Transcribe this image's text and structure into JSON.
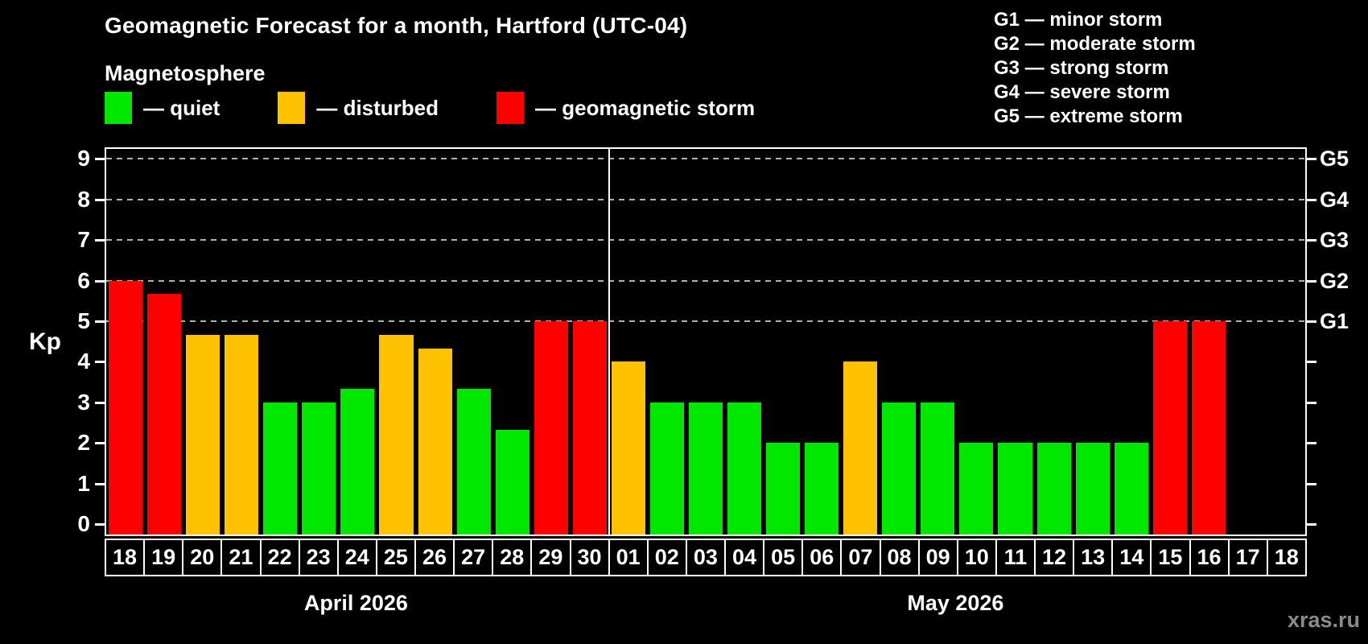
{
  "title": "Geomagnetic Forecast for a month, Hartford (UTC-04)",
  "subtitle": "Magnetosphere",
  "watermark": "xras.ru",
  "colors": {
    "quiet": "#00e800",
    "disturbed": "#ffc200",
    "storm": "#ff0000",
    "background": "#000000",
    "axis": "#ffffff",
    "grid": "#b0b0b0",
    "watermark": "#8a8a8a"
  },
  "legend": {
    "items": [
      {
        "key": "quiet",
        "label": "— quiet",
        "color": "#00e800"
      },
      {
        "key": "disturbed",
        "label": "— disturbed",
        "color": "#ffc200"
      },
      {
        "key": "storm",
        "label": "— geomagnetic storm",
        "color": "#ff0000"
      }
    ]
  },
  "g_legend": [
    "G1 — minor storm",
    "G2 — moderate storm",
    "G3 — strong storm",
    "G4 — severe storm",
    "G5 — extreme storm"
  ],
  "axis": {
    "y_label": "Kp",
    "y_ticks": [
      0,
      1,
      2,
      3,
      4,
      5,
      6,
      7,
      8,
      9
    ],
    "right_labels": [
      {
        "kp": 5,
        "label": "G1"
      },
      {
        "kp": 6,
        "label": "G2"
      },
      {
        "kp": 7,
        "label": "G3"
      },
      {
        "kp": 8,
        "label": "G4"
      },
      {
        "kp": 9,
        "label": "G5"
      }
    ]
  },
  "chart_data": {
    "type": "bar",
    "title": "Geomagnetic Forecast for a month, Hartford (UTC-04)",
    "xlabel": "",
    "ylabel": "Kp",
    "ylim": [
      0,
      9.3
    ],
    "gridlines_at": [
      5,
      6,
      7,
      8,
      9
    ],
    "grid": "dashed horizontal lines at storm levels G1–G5 only",
    "legend_position": "top-left",
    "groups": [
      {
        "label": "April 2026",
        "days": [
          {
            "day": "18",
            "value": 6.0,
            "status": "storm"
          },
          {
            "day": "19",
            "value": 5.67,
            "status": "storm"
          },
          {
            "day": "20",
            "value": 4.67,
            "status": "disturbed"
          },
          {
            "day": "21",
            "value": 4.67,
            "status": "disturbed"
          },
          {
            "day": "22",
            "value": 3.0,
            "status": "quiet"
          },
          {
            "day": "23",
            "value": 3.0,
            "status": "quiet"
          },
          {
            "day": "24",
            "value": 3.33,
            "status": "quiet"
          },
          {
            "day": "25",
            "value": 4.67,
            "status": "disturbed"
          },
          {
            "day": "26",
            "value": 4.33,
            "status": "disturbed"
          },
          {
            "day": "27",
            "value": 3.33,
            "status": "quiet"
          },
          {
            "day": "28",
            "value": 2.33,
            "status": "quiet"
          },
          {
            "day": "29",
            "value": 5.0,
            "status": "storm"
          },
          {
            "day": "30",
            "value": 5.0,
            "status": "storm"
          }
        ]
      },
      {
        "label": "May 2026",
        "days": [
          {
            "day": "01",
            "value": 4.0,
            "status": "disturbed"
          },
          {
            "day": "02",
            "value": 3.0,
            "status": "quiet"
          },
          {
            "day": "03",
            "value": 3.0,
            "status": "quiet"
          },
          {
            "day": "04",
            "value": 3.0,
            "status": "quiet"
          },
          {
            "day": "05",
            "value": 2.0,
            "status": "quiet"
          },
          {
            "day": "06",
            "value": 2.0,
            "status": "quiet"
          },
          {
            "day": "07",
            "value": 4.0,
            "status": "disturbed"
          },
          {
            "day": "08",
            "value": 3.0,
            "status": "quiet"
          },
          {
            "day": "09",
            "value": 3.0,
            "status": "quiet"
          },
          {
            "day": "10",
            "value": 2.0,
            "status": "quiet"
          },
          {
            "day": "11",
            "value": 2.0,
            "status": "quiet"
          },
          {
            "day": "12",
            "value": 2.0,
            "status": "quiet"
          },
          {
            "day": "13",
            "value": 2.0,
            "status": "quiet"
          },
          {
            "day": "14",
            "value": 2.0,
            "status": "quiet"
          },
          {
            "day": "15",
            "value": 5.0,
            "status": "storm"
          },
          {
            "day": "16",
            "value": 5.0,
            "status": "storm"
          },
          {
            "day": "17",
            "value": null,
            "status": "none"
          },
          {
            "day": "18",
            "value": null,
            "status": "none"
          }
        ]
      }
    ]
  }
}
